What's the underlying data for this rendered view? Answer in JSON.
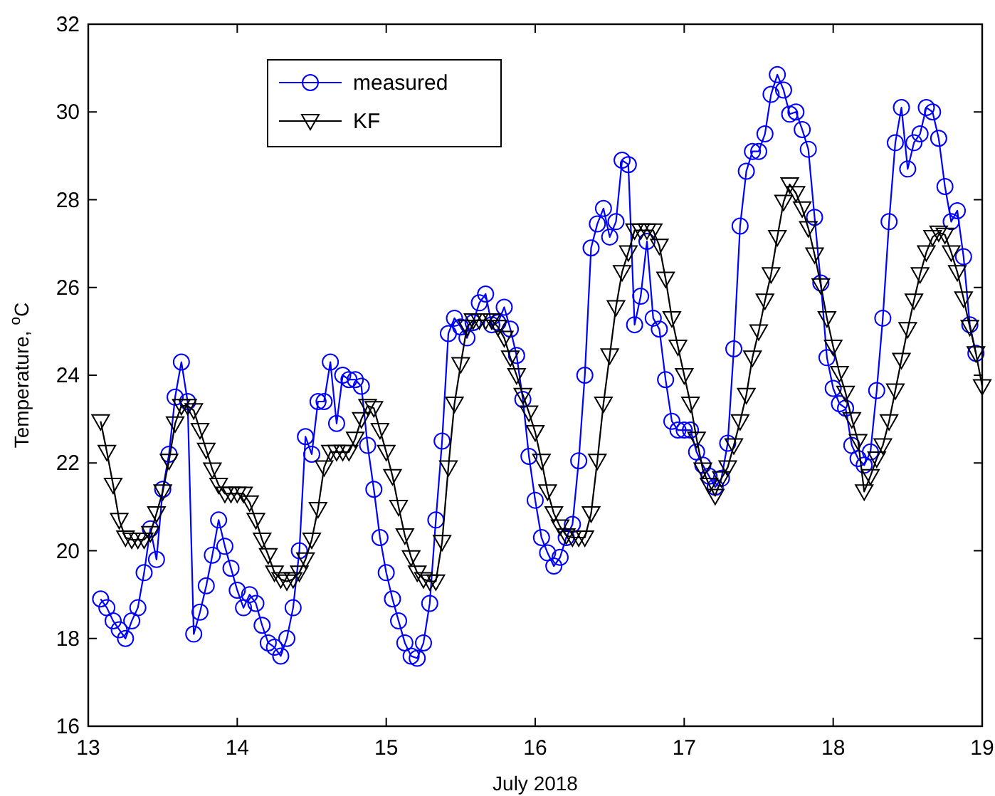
{
  "chart_data": {
    "type": "line",
    "xlabel": "July 2018",
    "ylabel": "Temperature, $^{o}$C",
    "xlim": [
      13,
      19
    ],
    "xticks": [
      13,
      14,
      15,
      16,
      17,
      18,
      19
    ],
    "ylim": [
      16,
      32
    ],
    "yticks": [
      16,
      18,
      20,
      22,
      24,
      26,
      28,
      30,
      32
    ],
    "grid": false,
    "legend": "top left",
    "x": [
      13.083,
      13.125,
      13.167,
      13.208,
      13.25,
      13.292,
      13.333,
      13.375,
      13.417,
      13.458,
      13.5,
      13.542,
      13.583,
      13.625,
      13.667,
      13.708,
      13.75,
      13.792,
      13.833,
      13.875,
      13.917,
      13.958,
      14,
      14.042,
      14.083,
      14.125,
      14.167,
      14.208,
      14.25,
      14.292,
      14.333,
      14.375,
      14.417,
      14.458,
      14.5,
      14.542,
      14.583,
      14.625,
      14.667,
      14.708,
      14.75,
      14.792,
      14.833,
      14.875,
      14.917,
      14.958,
      15,
      15.042,
      15.083,
      15.125,
      15.167,
      15.208,
      15.25,
      15.292,
      15.333,
      15.375,
      15.417,
      15.458,
      15.5,
      15.542,
      15.583,
      15.625,
      15.667,
      15.708,
      15.75,
      15.792,
      15.833,
      15.875,
      15.917,
      15.958,
      16,
      16.042,
      16.083,
      16.125,
      16.167,
      16.208,
      16.25,
      16.292,
      16.333,
      16.375,
      16.417,
      16.458,
      16.5,
      16.542,
      16.583,
      16.625,
      16.667,
      16.708,
      16.75,
      16.792,
      16.833,
      16.875,
      16.917,
      16.958,
      17,
      17.042,
      17.083,
      17.125,
      17.167,
      17.208,
      17.25,
      17.292,
      17.333,
      17.375,
      17.417,
      17.458,
      17.5,
      17.542,
      17.583,
      17.625,
      17.667,
      17.708,
      17.75,
      17.792,
      17.833,
      17.875,
      17.917,
      17.958,
      18,
      18.042,
      18.083,
      18.125,
      18.167,
      18.208,
      18.25,
      18.292,
      18.333,
      18.375,
      18.417,
      18.458,
      18.5,
      18.542,
      18.583,
      18.625,
      18.667,
      18.708,
      18.75,
      18.792,
      18.833,
      18.875,
      18.917,
      18.958,
      19
    ],
    "series": [
      {
        "name": "measured",
        "color": "#0000ff",
        "marker": "circle",
        "line_style": "solid",
        "values": [
          18.9,
          18.7,
          18.4,
          18.2,
          18.0,
          18.4,
          18.7,
          19.5,
          20.5,
          19.8,
          21.4,
          22.2,
          23.5,
          24.3,
          23.4,
          18.1,
          18.6,
          19.2,
          19.9,
          20.7,
          20.1,
          19.6,
          19.1,
          18.7,
          19.0,
          18.8,
          18.3,
          17.9,
          17.8,
          17.6,
          18.0,
          18.7,
          20.0,
          22.6,
          22.2,
          23.4,
          23.4,
          24.3,
          22.9,
          24.0,
          23.9,
          23.9,
          23.75,
          22.4,
          21.4,
          20.3,
          19.5,
          18.9,
          18.4,
          17.9,
          17.6,
          17.55,
          17.9,
          18.8,
          20.7,
          22.5,
          24.95,
          25.3,
          25.1,
          24.85,
          25.2,
          25.65,
          25.85,
          25.15,
          25.2,
          25.55,
          25.05,
          24.45,
          23.45,
          22.15,
          21.15,
          20.3,
          19.95,
          19.65,
          19.85,
          20.3,
          20.6,
          22.05,
          24.0,
          26.9,
          27.45,
          27.8,
          27.15,
          27.5,
          28.9,
          28.8,
          25.15,
          25.8,
          27.05,
          25.3,
          25.05,
          23.9,
          22.95,
          22.75,
          22.75,
          22.75,
          22.25,
          21.95,
          21.7,
          21.45,
          21.65,
          22.45,
          24.6,
          27.4,
          28.65,
          29.1,
          29.1,
          29.5,
          30.4,
          30.85,
          30.5,
          29.95,
          30.0,
          29.6,
          29.15,
          27.6,
          26.1,
          24.4,
          23.7,
          23.35,
          23.25,
          22.4,
          22.1,
          21.95,
          22.25,
          23.65,
          25.3,
          27.5,
          29.3,
          30.1,
          28.7,
          29.3,
          29.5,
          30.1,
          30.0,
          29.4,
          28.3,
          27.5,
          27.75,
          26.7,
          25.15,
          24.5,
          null
        ]
      },
      {
        "name": "KF",
        "color": "#000000",
        "marker": "triangle",
        "line_style": "solid",
        "values": [
          22.95,
          22.25,
          21.5,
          20.7,
          20.3,
          20.25,
          20.25,
          20.25,
          20.4,
          20.85,
          21.35,
          22.05,
          22.9,
          23.3,
          23.3,
          23.2,
          22.75,
          22.3,
          21.85,
          21.5,
          21.3,
          21.3,
          21.3,
          21.3,
          21.1,
          20.7,
          20.25,
          19.9,
          19.5,
          19.35,
          19.3,
          19.35,
          19.5,
          19.8,
          20.25,
          20.95,
          21.9,
          22.25,
          22.25,
          22.25,
          22.25,
          22.55,
          23.0,
          23.3,
          23.25,
          22.75,
          22.25,
          21.7,
          21.0,
          20.35,
          19.85,
          19.5,
          19.35,
          19.3,
          19.3,
          20.2,
          21.9,
          23.35,
          24.25,
          25.1,
          25.25,
          25.25,
          25.25,
          25.25,
          25.1,
          24.85,
          24.4,
          24.0,
          23.55,
          23.15,
          22.7,
          22.05,
          21.35,
          20.85,
          20.55,
          20.35,
          20.3,
          20.3,
          20.3,
          20.85,
          22.05,
          23.35,
          24.45,
          25.55,
          26.35,
          26.8,
          27.3,
          27.3,
          27.3,
          27.3,
          26.95,
          26.2,
          25.3,
          24.65,
          24.0,
          23.35,
          22.55,
          21.85,
          21.5,
          21.25,
          21.65,
          21.9,
          22.4,
          22.95,
          23.55,
          24.4,
          25.0,
          25.7,
          26.3,
          27.15,
          27.95,
          28.35,
          28.15,
          27.8,
          27.35,
          26.75,
          26.05,
          25.3,
          24.65,
          24.05,
          23.6,
          23.0,
          22.5,
          21.35,
          21.7,
          22.1,
          22.4,
          22.95,
          23.65,
          24.35,
          25.05,
          25.7,
          26.3,
          26.8,
          27.15,
          27.25,
          27.2,
          26.8,
          26.35,
          25.75,
          25.1,
          24.5,
          23.75
        ]
      }
    ]
  }
}
